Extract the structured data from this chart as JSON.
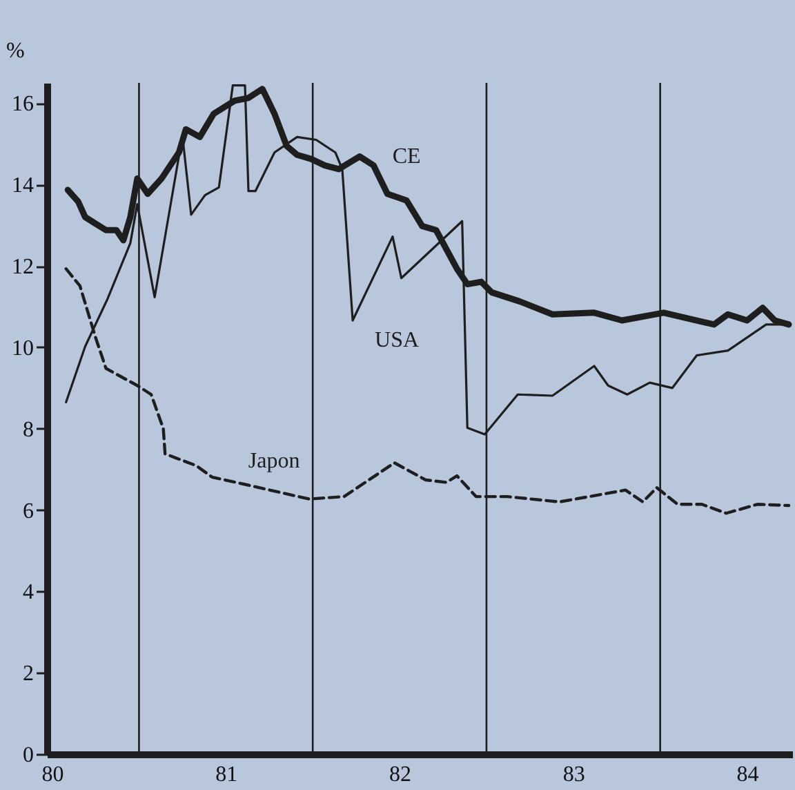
{
  "chart_data": {
    "type": "line",
    "ylabel": "%",
    "xlim": [
      79.97,
      84.26
    ],
    "ylim": [
      0,
      16.5
    ],
    "yticks": [
      0,
      2,
      4,
      6,
      8,
      10,
      12,
      14,
      16
    ],
    "xticks": [
      80,
      81,
      82,
      83,
      84
    ],
    "marker": "none",
    "ref_lines": [
      {
        "axis": "x",
        "value": 80.5,
        "color": "#1e1e1e"
      },
      {
        "axis": "x",
        "value": 81.5,
        "color": "#1e1e1e"
      },
      {
        "axis": "x",
        "value": 82.5,
        "color": "#1e1e1e"
      },
      {
        "axis": "x",
        "value": 83.5,
        "color": "#1e1e1e"
      }
    ],
    "series": [
      {
        "name": "CE",
        "color": "#1e1e1e",
        "line_style": "solid",
        "x": [
          80.09,
          80.15,
          80.19,
          80.25,
          80.31,
          80.37,
          80.41,
          80.45,
          80.49,
          80.55,
          80.63,
          80.73,
          80.77,
          80.85,
          80.93,
          81.05,
          81.13,
          81.21,
          81.28,
          81.35,
          81.41,
          81.49,
          81.57,
          81.65,
          81.77,
          81.85,
          81.93,
          82.04,
          82.13,
          82.21,
          82.33,
          82.39,
          82.47,
          82.53,
          82.69,
          82.88,
          83.12,
          83.28,
          83.52,
          83.81,
          83.89,
          84.0,
          84.09,
          84.16,
          84.24
        ],
        "values": [
          13.87,
          13.58,
          13.2,
          13.04,
          12.88,
          12.88,
          12.63,
          13.2,
          14.15,
          13.77,
          14.15,
          14.79,
          15.36,
          15.17,
          15.74,
          16.06,
          16.13,
          16.35,
          15.74,
          14.95,
          14.73,
          14.63,
          14.47,
          14.38,
          14.69,
          14.47,
          13.77,
          13.61,
          12.98,
          12.88,
          11.93,
          11.55,
          11.61,
          11.35,
          11.13,
          10.81,
          10.85,
          10.66,
          10.85,
          10.56,
          10.81,
          10.66,
          10.97,
          10.66,
          10.56
        ]
      },
      {
        "name": "USA",
        "color": "#1e1e1e",
        "line_style": "solid",
        "x": [
          80.08,
          80.19,
          80.32,
          80.45,
          80.49,
          80.59,
          80.75,
          80.8,
          80.88,
          80.96,
          81.04,
          81.11,
          81.13,
          81.17,
          81.28,
          81.41,
          81.52,
          81.63,
          81.67,
          81.73,
          81.96,
          82.01,
          82.36,
          82.39,
          82.49,
          82.68,
          82.88,
          83.12,
          83.2,
          83.31,
          83.44,
          83.57,
          83.71,
          83.89,
          84.11,
          84.21
        ],
        "values": [
          8.65,
          10.02,
          11.2,
          12.56,
          13.52,
          11.23,
          15.2,
          13.26,
          13.74,
          13.93,
          16.44,
          16.44,
          13.84,
          13.84,
          14.79,
          15.17,
          15.1,
          14.79,
          14.38,
          10.66,
          12.72,
          11.7,
          13.1,
          8.02,
          7.86,
          8.84,
          8.81,
          9.54,
          9.06,
          8.84,
          9.13,
          9.0,
          9.8,
          9.92,
          10.56,
          10.56
        ]
      },
      {
        "name": "Japon",
        "color": "#1e1e1e",
        "line_style": "dashed",
        "x": [
          80.08,
          80.16,
          80.25,
          80.31,
          80.49,
          80.57,
          80.64,
          80.65,
          80.83,
          80.92,
          81.12,
          81.48,
          81.68,
          81.97,
          82.15,
          82.27,
          82.33,
          82.44,
          82.62,
          82.92,
          83.3,
          83.4,
          83.48,
          83.6,
          83.74,
          83.88,
          84.06,
          84.24
        ],
        "values": [
          11.93,
          11.51,
          10.24,
          9.48,
          9.06,
          8.84,
          8.0,
          7.38,
          7.09,
          6.81,
          6.62,
          6.27,
          6.33,
          7.16,
          6.74,
          6.68,
          6.84,
          6.33,
          6.33,
          6.2,
          6.49,
          6.2,
          6.55,
          6.14,
          6.14,
          5.92,
          6.14,
          6.11
        ]
      }
    ]
  }
}
